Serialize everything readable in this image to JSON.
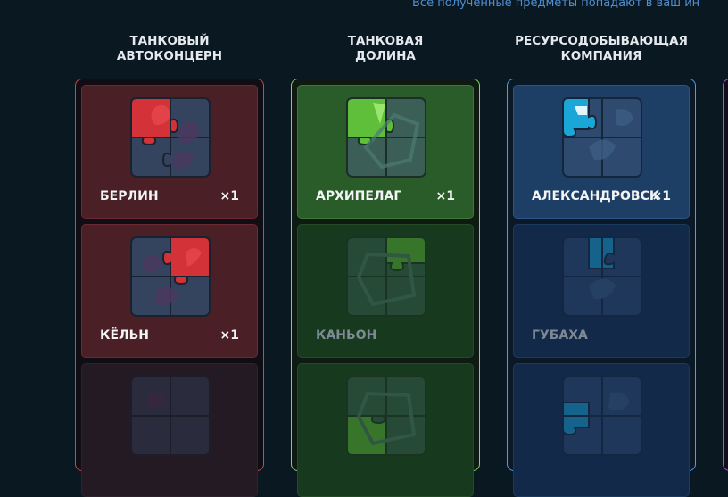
{
  "header": {
    "note": "Все полученные предметы попадают в ваш ин"
  },
  "columns": [
    {
      "title_line1": "ТАНКОВЫЙ",
      "title_line2": "АВТОКОНЦЕРН",
      "accent": "#d8404a",
      "cards": [
        {
          "name": "БЕРЛИН",
          "qty": "×1",
          "obtained": true
        },
        {
          "name": "КЁЛЬН",
          "qty": "×1",
          "obtained": true
        },
        {
          "name": "",
          "qty": "",
          "obtained": false
        }
      ]
    },
    {
      "title_line1": "ТАНКОВАЯ",
      "title_line2": "ДОЛИНА",
      "accent": "#7ed957",
      "cards": [
        {
          "name": "АРХИПЕЛАГ",
          "qty": "×1",
          "obtained": true
        },
        {
          "name": "КАНЬОН",
          "qty": "",
          "obtained": false
        },
        {
          "name": "",
          "qty": "",
          "obtained": false
        }
      ]
    },
    {
      "title_line1": "РЕСУРСОДОБЫВАЮЩАЯ",
      "title_line2": "КОМПАНИЯ",
      "accent": "#4f9de6",
      "cards": [
        {
          "name": "АЛЕКСАНДРОВСК",
          "qty": "×1",
          "obtained": true
        },
        {
          "name": "ГУБАХА",
          "qty": "",
          "obtained": false
        },
        {
          "name": "",
          "qty": "",
          "obtained": false
        }
      ]
    }
  ]
}
